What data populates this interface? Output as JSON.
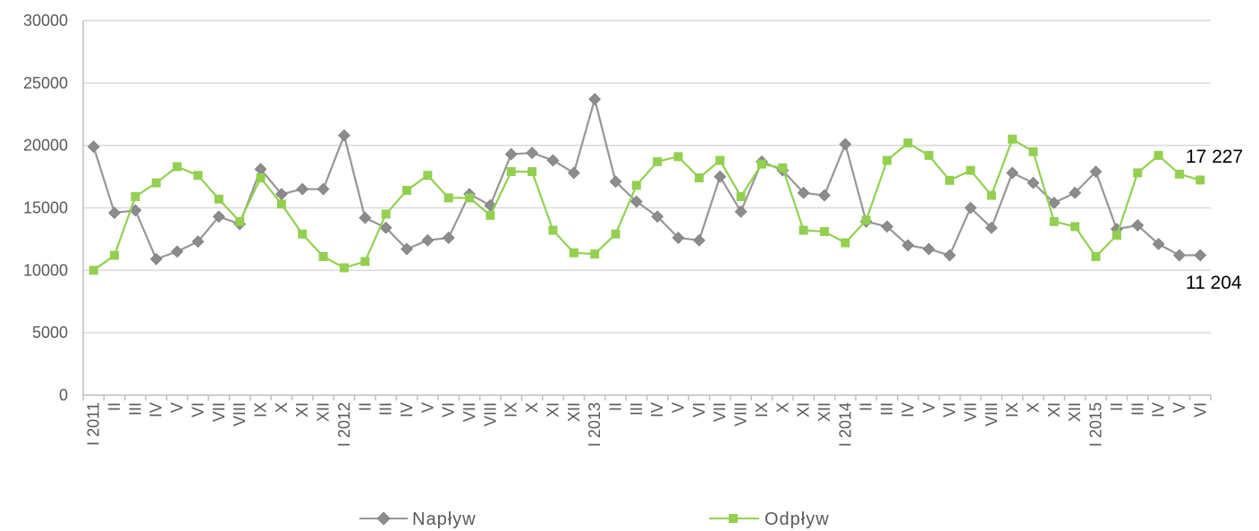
{
  "colors": {
    "naplyw": "#969696",
    "naplyw_marker": "#8c8c8c",
    "odplyw": "#92d050",
    "odplyw_marker": "#92d050",
    "grid": "#d9d9d9",
    "axis": "#bfbfbf"
  },
  "chart_data": {
    "type": "line",
    "title": "",
    "xlabel": "",
    "ylabel": "",
    "ylim": [
      0,
      30000
    ],
    "yticks": [
      "0",
      "5000",
      "10000",
      "15000",
      "20000",
      "25000",
      "30000"
    ],
    "grid": true,
    "legend_position": "bottom",
    "categories": [
      "I 2011",
      "II",
      "III",
      "IV",
      "V",
      "VI",
      "VII",
      "VIII",
      "IX",
      "X",
      "XI",
      "XII",
      "I 2012",
      "II",
      "III",
      "IV",
      "V",
      "VI",
      "VII",
      "VIII",
      "IX",
      "X",
      "XI",
      "XII",
      "I 2013",
      "II",
      "III",
      "IV",
      "V",
      "VI",
      "VII",
      "VIII",
      "IX",
      "X",
      "XI",
      "XII",
      "I 2014",
      "II",
      "III",
      "IV",
      "V",
      "VI",
      "VII",
      "VIII",
      "IX",
      "X",
      "XI",
      "XII",
      "I 2015",
      "II",
      "III",
      "IV",
      "V",
      "VI"
    ],
    "series": [
      {
        "name": "Napływ",
        "marker": "diamond",
        "values": [
          19900,
          14600,
          14800,
          10900,
          11500,
          12300,
          14300,
          13700,
          18100,
          16100,
          16500,
          16500,
          20800,
          14200,
          13400,
          11700,
          12400,
          12600,
          16100,
          15200,
          19300,
          19400,
          18800,
          17800,
          23700,
          17100,
          15500,
          14300,
          12600,
          12400,
          17500,
          14700,
          18700,
          18000,
          16200,
          16000,
          20100,
          13900,
          13500,
          12000,
          11700,
          11200,
          15000,
          13400,
          17800,
          17000,
          15400,
          16200,
          17900,
          13300,
          13600,
          12100,
          11200,
          11204
        ],
        "end_label": "11 204"
      },
      {
        "name": "Odpływ",
        "marker": "square",
        "values": [
          10000,
          11200,
          15900,
          17000,
          18300,
          17600,
          15700,
          13900,
          17400,
          15300,
          12900,
          11100,
          10200,
          10700,
          14500,
          16400,
          17600,
          15800,
          15800,
          14400,
          17900,
          17900,
          13200,
          11400,
          11300,
          12900,
          16800,
          18700,
          19100,
          17400,
          18800,
          15900,
          18500,
          18200,
          13200,
          13100,
          12200,
          14000,
          18800,
          20200,
          19200,
          17200,
          18000,
          16000,
          20500,
          19500,
          13900,
          13500,
          11100,
          12800,
          17800,
          19200,
          17700,
          17227
        ],
        "end_label": "17 227"
      }
    ]
  }
}
